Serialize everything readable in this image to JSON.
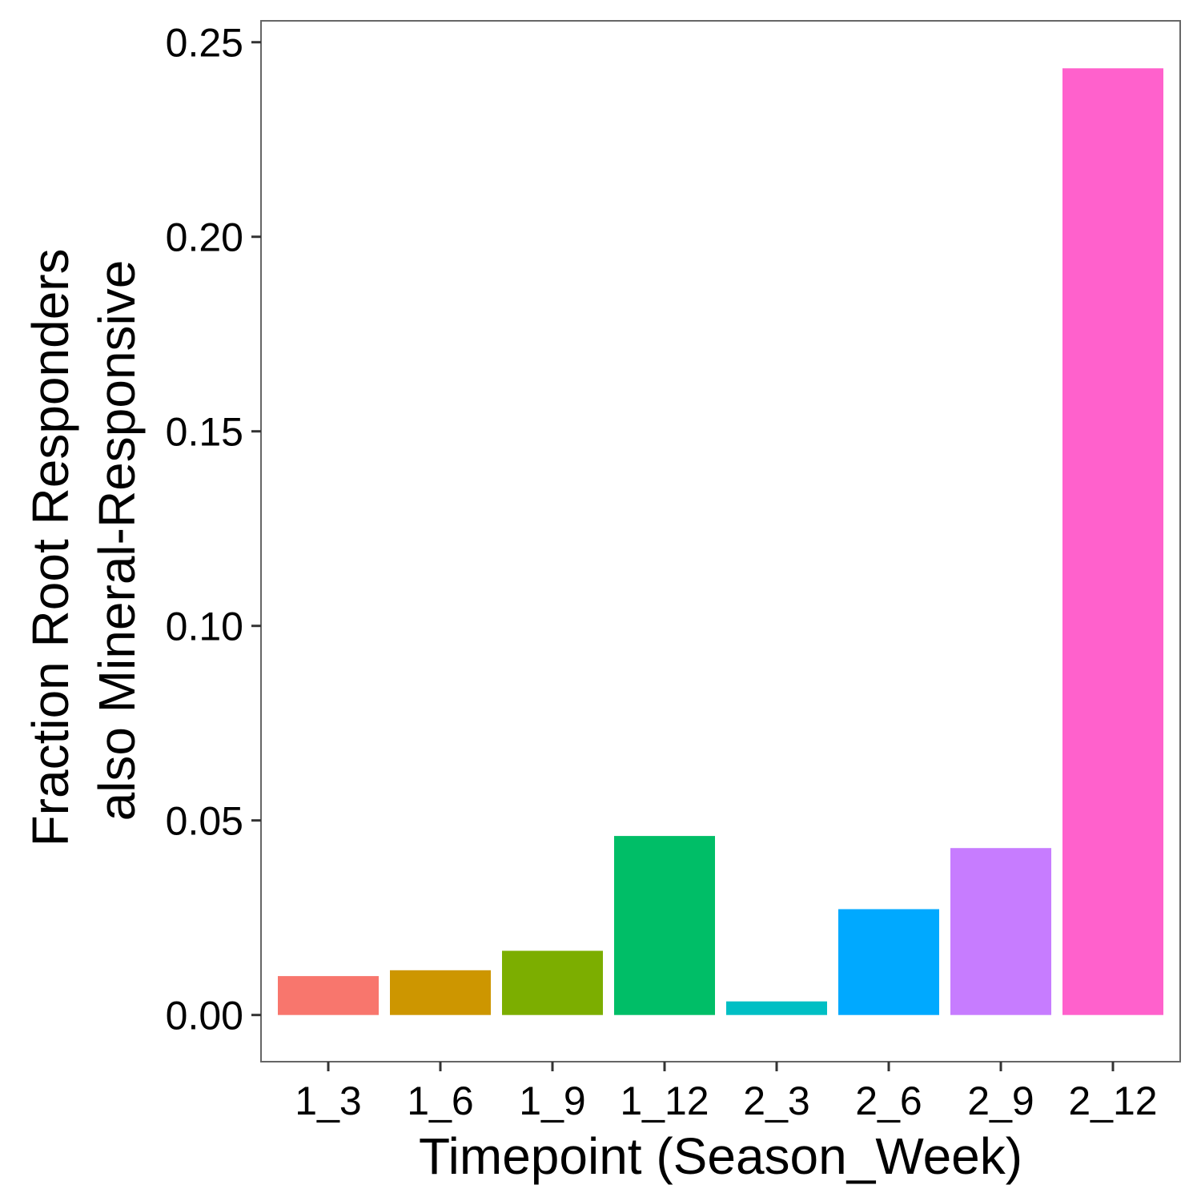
{
  "chart_data": {
    "type": "bar",
    "title": "",
    "xlabel": "Timepoint (Season_Week)",
    "ylabel_lines": [
      "Fraction Root Responders",
      "also Mineral-Responsive"
    ],
    "categories": [
      "1_3",
      "1_6",
      "1_9",
      "1_12",
      "2_3",
      "2_6",
      "2_9",
      "2_12"
    ],
    "values": [
      0.01,
      0.0115,
      0.0165,
      0.046,
      0.0035,
      0.0272,
      0.0429,
      0.2433
    ],
    "colors": [
      "#F8766D",
      "#CD9600",
      "#7CAE00",
      "#00BE67",
      "#00BFC4",
      "#00A9FF",
      "#C77CFF",
      "#FF61CC"
    ],
    "ylim": [
      -0.012,
      0.2555
    ],
    "yticks": [
      0.0,
      0.05,
      0.1,
      0.15,
      0.2,
      0.25
    ],
    "ytick_labels": [
      "0.00",
      "0.05",
      "0.10",
      "0.15",
      "0.20",
      "0.25"
    ],
    "grid": false,
    "legend": "none"
  }
}
